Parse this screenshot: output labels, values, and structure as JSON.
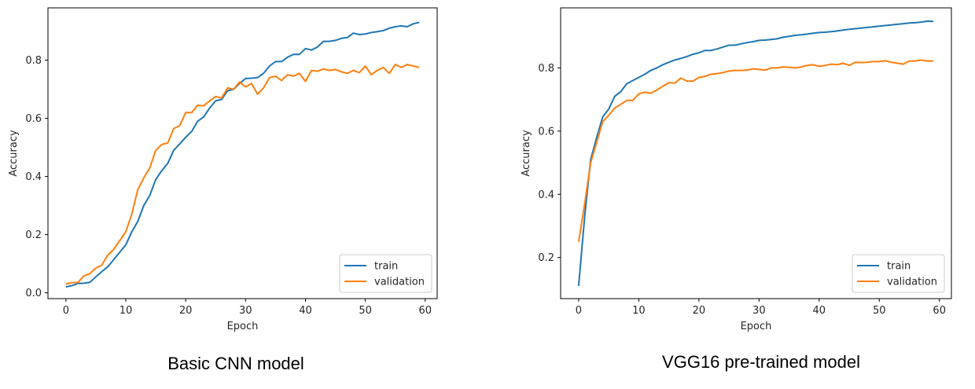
{
  "colors": {
    "train": "#1f77b4",
    "validation": "#ff7f0e"
  },
  "chart_data": [
    {
      "type": "line",
      "caption": "Basic CNN model",
      "title": "",
      "xlabel": "Epoch",
      "ylabel": "Accuracy",
      "xlim": [
        -3,
        62
      ],
      "ylim": [
        -0.02,
        0.98
      ],
      "xticks": [
        0,
        10,
        20,
        30,
        40,
        50,
        60
      ],
      "yticks": [
        0.0,
        0.2,
        0.4,
        0.6,
        0.8
      ],
      "ytick_labels": [
        "0.0",
        "0.2",
        "0.4",
        "0.6",
        "0.8"
      ],
      "legend": "lower-right",
      "grid": false,
      "x": [
        0,
        1,
        2,
        3,
        4,
        5,
        6,
        7,
        8,
        9,
        10,
        11,
        12,
        13,
        14,
        15,
        16,
        17,
        18,
        19,
        20,
        21,
        22,
        23,
        24,
        25,
        26,
        27,
        28,
        29,
        30,
        31,
        32,
        33,
        34,
        35,
        36,
        37,
        38,
        39,
        40,
        41,
        42,
        43,
        44,
        45,
        46,
        47,
        48,
        49,
        50,
        51,
        52,
        53,
        54,
        55,
        56,
        57,
        58,
        59
      ],
      "series": [
        {
          "name": "train",
          "color_key": "train",
          "values": [
            0.02,
            0.025,
            0.032,
            0.033,
            0.036,
            0.055,
            0.073,
            0.09,
            0.115,
            0.14,
            0.165,
            0.21,
            0.245,
            0.3,
            0.335,
            0.39,
            0.42,
            0.445,
            0.49,
            0.512,
            0.535,
            0.555,
            0.59,
            0.605,
            0.635,
            0.66,
            0.665,
            0.695,
            0.7,
            0.72,
            0.737,
            0.738,
            0.74,
            0.755,
            0.78,
            0.795,
            0.795,
            0.81,
            0.82,
            0.82,
            0.84,
            0.835,
            0.845,
            0.865,
            0.865,
            0.868,
            0.875,
            0.878,
            0.893,
            0.888,
            0.89,
            0.895,
            0.898,
            0.902,
            0.91,
            0.915,
            0.918,
            0.915,
            0.925,
            0.93
          ]
        },
        {
          "name": "validation",
          "color_key": "validation",
          "values": [
            0.03,
            0.035,
            0.035,
            0.058,
            0.066,
            0.085,
            0.095,
            0.13,
            0.15,
            0.18,
            0.21,
            0.27,
            0.355,
            0.395,
            0.43,
            0.49,
            0.51,
            0.515,
            0.565,
            0.575,
            0.62,
            0.62,
            0.645,
            0.643,
            0.66,
            0.675,
            0.67,
            0.705,
            0.7,
            0.725,
            0.708,
            0.72,
            0.683,
            0.705,
            0.74,
            0.745,
            0.73,
            0.75,
            0.745,
            0.755,
            0.727,
            0.765,
            0.762,
            0.77,
            0.765,
            0.768,
            0.76,
            0.755,
            0.765,
            0.757,
            0.78,
            0.75,
            0.765,
            0.775,
            0.755,
            0.785,
            0.775,
            0.785,
            0.78,
            0.775
          ]
        }
      ]
    },
    {
      "type": "line",
      "caption": "VGG16 pre-trained model",
      "title": "",
      "xlabel": "Epoch",
      "ylabel": "Accuracy",
      "xlim": [
        -3,
        62
      ],
      "ylim": [
        0.07,
        0.99
      ],
      "xticks": [
        0,
        10,
        20,
        30,
        40,
        50,
        60
      ],
      "yticks": [
        0.2,
        0.4,
        0.6,
        0.8
      ],
      "ytick_labels": [
        "0.2",
        "0.4",
        "0.6",
        "0.8"
      ],
      "legend": "lower-right",
      "grid": false,
      "x": [
        0,
        1,
        2,
        3,
        4,
        5,
        6,
        7,
        8,
        9,
        10,
        11,
        12,
        13,
        14,
        15,
        16,
        17,
        18,
        19,
        20,
        21,
        22,
        23,
        24,
        25,
        26,
        27,
        28,
        29,
        30,
        31,
        32,
        33,
        34,
        35,
        36,
        37,
        38,
        39,
        40,
        41,
        42,
        43,
        44,
        45,
        46,
        47,
        48,
        49,
        50,
        51,
        52,
        53,
        54,
        55,
        56,
        57,
        58,
        59
      ],
      "series": [
        {
          "name": "train",
          "color_key": "train",
          "values": [
            0.11,
            0.33,
            0.51,
            0.58,
            0.645,
            0.67,
            0.71,
            0.725,
            0.75,
            0.76,
            0.77,
            0.78,
            0.792,
            0.8,
            0.81,
            0.818,
            0.825,
            0.83,
            0.836,
            0.843,
            0.848,
            0.855,
            0.855,
            0.86,
            0.866,
            0.872,
            0.872,
            0.876,
            0.88,
            0.883,
            0.887,
            0.888,
            0.89,
            0.892,
            0.897,
            0.9,
            0.903,
            0.905,
            0.907,
            0.91,
            0.912,
            0.913,
            0.915,
            0.917,
            0.92,
            0.922,
            0.924,
            0.926,
            0.928,
            0.93,
            0.932,
            0.934,
            0.936,
            0.938,
            0.94,
            0.942,
            0.943,
            0.945,
            0.948,
            0.947
          ]
        },
        {
          "name": "validation",
          "color_key": "validation",
          "values": [
            0.25,
            0.37,
            0.5,
            0.565,
            0.63,
            0.65,
            0.673,
            0.685,
            0.697,
            0.697,
            0.718,
            0.723,
            0.72,
            0.73,
            0.742,
            0.753,
            0.752,
            0.768,
            0.758,
            0.758,
            0.77,
            0.773,
            0.78,
            0.782,
            0.785,
            0.79,
            0.792,
            0.792,
            0.793,
            0.797,
            0.795,
            0.793,
            0.8,
            0.8,
            0.803,
            0.802,
            0.8,
            0.803,
            0.808,
            0.81,
            0.805,
            0.808,
            0.812,
            0.81,
            0.815,
            0.808,
            0.818,
            0.817,
            0.818,
            0.82,
            0.82,
            0.823,
            0.818,
            0.815,
            0.812,
            0.822,
            0.822,
            0.825,
            0.822,
            0.822
          ]
        }
      ]
    }
  ]
}
